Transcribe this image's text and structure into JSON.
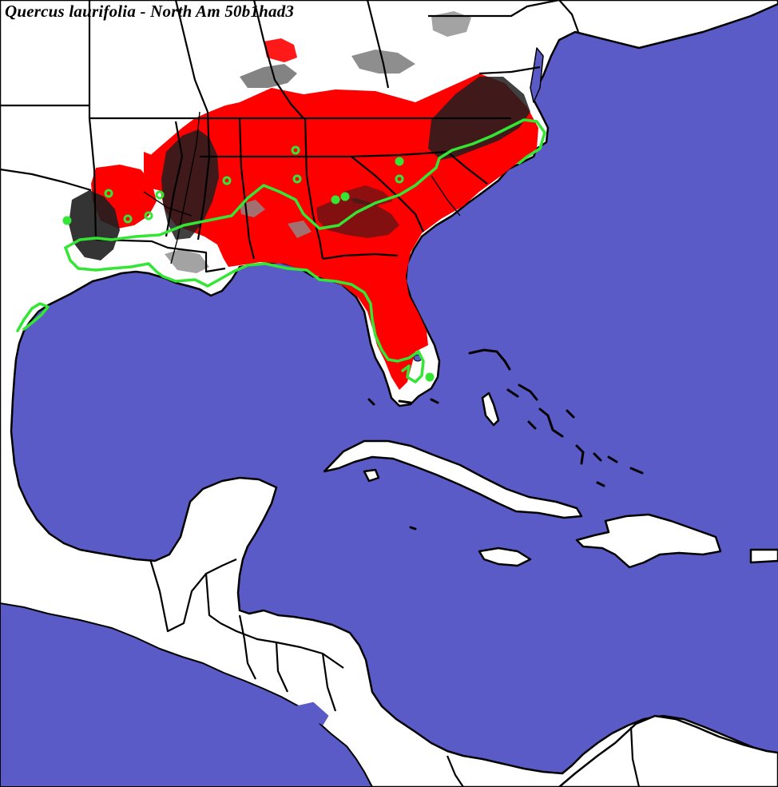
{
  "map": {
    "title": "Quercus laurifolia - North Am 50b1had3",
    "colors": {
      "ocean": "#5b5bc8",
      "land": "#ffffff",
      "borders": "#000000",
      "predicted_range": "#ff0000",
      "dense_range": "#1e1e1e",
      "marginal_range": "#8c8c8c",
      "observed_range_outline": "#33e633",
      "occurrence_points": "#33e633"
    },
    "layers": [
      "ocean",
      "land",
      "predicted-range",
      "dark-suitability",
      "political-borders",
      "range-outline",
      "occurrence-points"
    ],
    "icons": [
      "occurrence-point-icon"
    ]
  }
}
